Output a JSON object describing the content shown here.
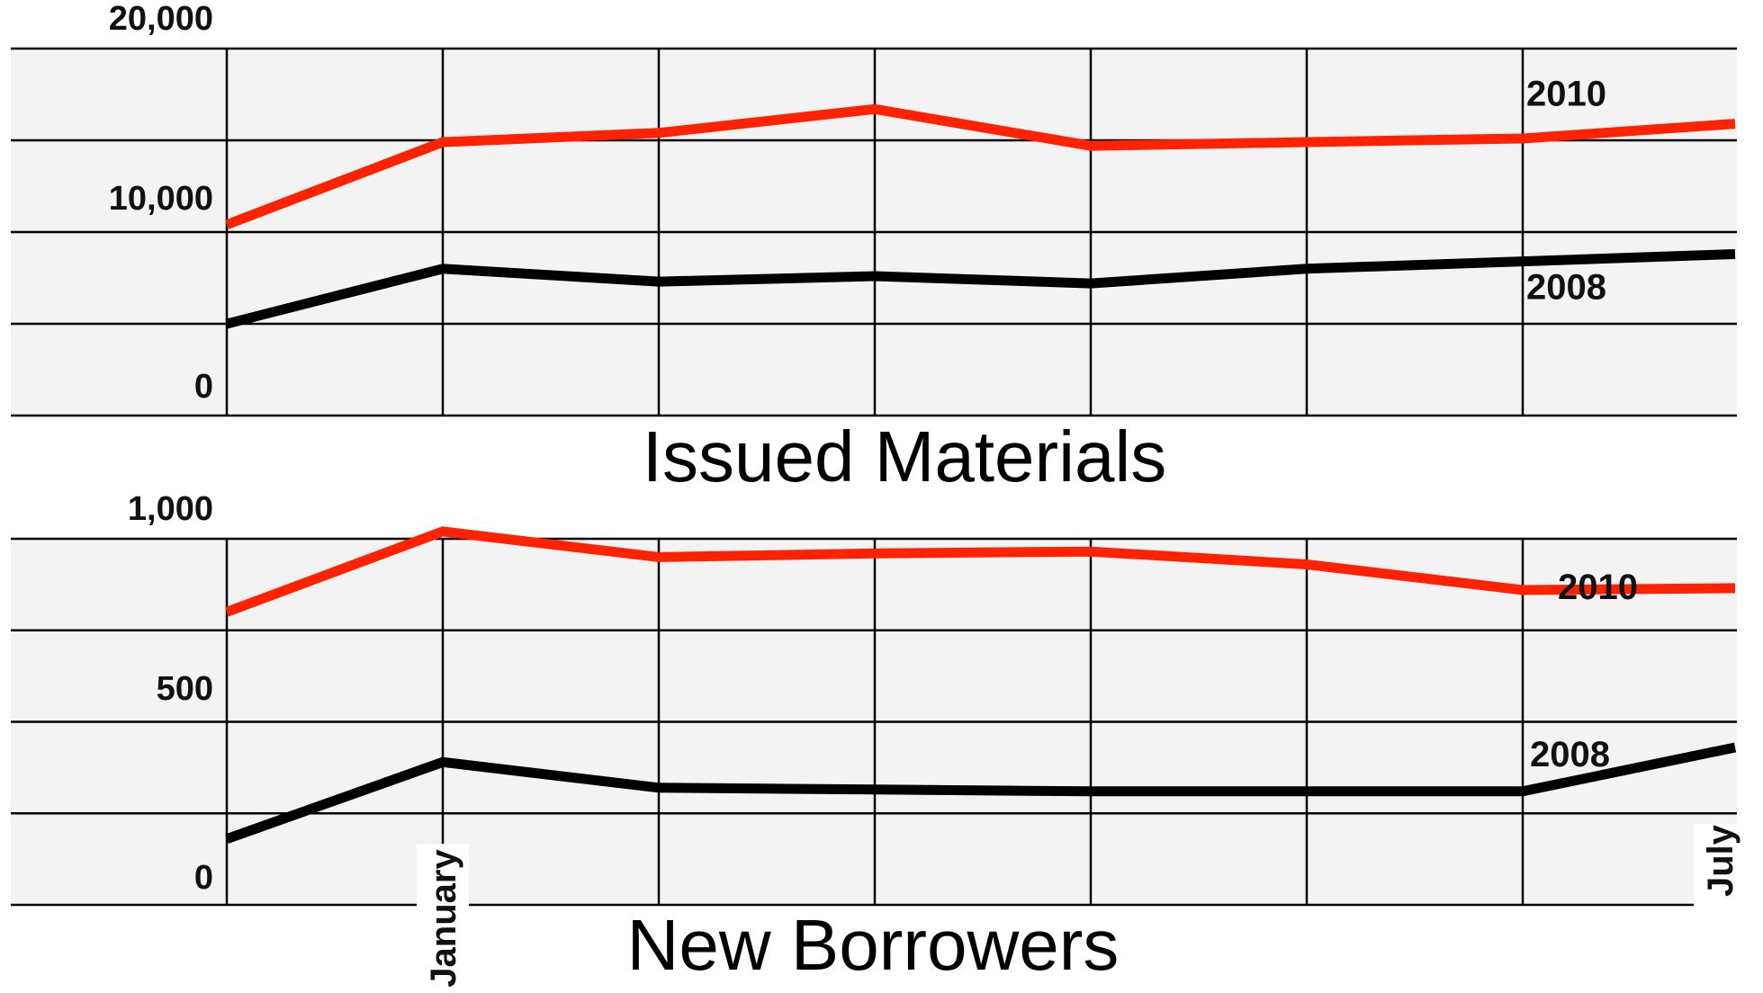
{
  "chart_data": [
    {
      "type": "line",
      "title": "Issued Materials",
      "categories": [
        "",
        "January",
        "",
        "",
        "",
        "",
        "",
        "July"
      ],
      "y_tick_labels": [
        "0",
        "10,000",
        "20,000"
      ],
      "ylim": [
        0,
        20000
      ],
      "grid": true,
      "series": [
        {
          "name": "2010",
          "color": "#ff2200",
          "values": [
            10400,
            14900,
            15400,
            16700,
            14700,
            14900,
            15100,
            15900
          ]
        },
        {
          "name": "2008",
          "color": "#000000",
          "values": [
            5000,
            8000,
            7300,
            7600,
            7200,
            8000,
            8400,
            8800
          ]
        }
      ],
      "legend": "inline labels at right end of each line"
    },
    {
      "type": "line",
      "title": "New Borrowers",
      "categories": [
        "",
        "January",
        "",
        "",
        "",
        "",
        "",
        "July"
      ],
      "y_tick_labels": [
        "0",
        "500",
        "1,000"
      ],
      "ylim": [
        0,
        1000
      ],
      "grid": true,
      "series": [
        {
          "name": "2010",
          "color": "#ff2200",
          "values": [
            800,
            1020,
            950,
            960,
            965,
            930,
            860,
            865
          ]
        },
        {
          "name": "2008",
          "color": "#000000",
          "values": [
            180,
            390,
            320,
            315,
            310,
            310,
            310,
            430
          ]
        }
      ],
      "legend": "inline labels at right end of each line"
    }
  ]
}
